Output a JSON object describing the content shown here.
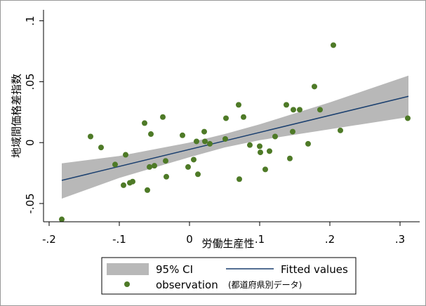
{
  "chart_data": {
    "type": "scatter",
    "xlabel": "労働生産性",
    "ylabel": "地域間価格差指数",
    "xlim": [
      -0.208,
      0.328
    ],
    "ylim": [
      -0.065,
      0.109
    ],
    "xticks": [
      {
        "value": -0.2,
        "label": "-.2"
      },
      {
        "value": -0.1,
        "label": "-.1"
      },
      0,
      {
        "value": 0.1,
        "label": ".1"
      },
      {
        "value": 0.2,
        "label": ".2"
      },
      {
        "value": 0.3,
        "label": ".3"
      }
    ],
    "yticks": [
      {
        "value": -0.05,
        "label": "-.05"
      },
      0,
      {
        "value": 0.05,
        "label": ".05"
      },
      {
        "value": 0.1,
        "label": ".1"
      }
    ],
    "legend_note": "(都道府県別データ)",
    "series": [
      {
        "name": "95% CI",
        "type": "band",
        "color": "#b8b8b8",
        "x": [
          -0.182,
          -0.1,
          0,
          0.05,
          0.1,
          0.2,
          0.312
        ],
        "lower": [
          -0.046,
          -0.029,
          -0.012,
          -0.004,
          0.002,
          0.011,
          0.021
        ],
        "upper": [
          -0.017,
          -0.011,
          0.0,
          0.007,
          0.015,
          0.033,
          0.055
        ]
      },
      {
        "name": "Fitted values",
        "type": "line",
        "color": "#1a3f6f",
        "x": [
          -0.182,
          0.312
        ],
        "values": [
          -0.031,
          0.038
        ]
      },
      {
        "name": "observation",
        "type": "scatter",
        "color": "#4e7a27",
        "x": [
          -0.182,
          -0.141,
          -0.126,
          -0.106,
          -0.094,
          -0.091,
          -0.085,
          -0.081,
          -0.064,
          -0.06,
          -0.057,
          -0.055,
          -0.05,
          -0.038,
          -0.034,
          -0.033,
          -0.01,
          -0.002,
          0.006,
          0.01,
          0.012,
          0.021,
          0.022,
          0.029,
          0.051,
          0.052,
          0.07,
          0.071,
          0.077,
          0.086,
          0.1,
          0.101,
          0.108,
          0.114,
          0.122,
          0.138,
          0.143,
          0.147,
          0.148,
          0.157,
          0.169,
          0.178,
          0.186,
          0.205,
          0.215,
          0.311
        ],
        "values": [
          -0.063,
          0.005,
          -0.004,
          -0.018,
          -0.035,
          -0.01,
          -0.033,
          -0.032,
          0.016,
          -0.039,
          -0.02,
          0.007,
          -0.019,
          0.021,
          -0.015,
          -0.028,
          0.006,
          -0.02,
          -0.014,
          0.001,
          -0.026,
          0.009,
          0.001,
          -0.001,
          0.003,
          0.02,
          0.031,
          -0.03,
          0.021,
          -0.002,
          -0.003,
          -0.008,
          -0.022,
          -0.007,
          0.005,
          0.031,
          -0.013,
          0.009,
          0.027,
          0.027,
          -0.001,
          0.046,
          0.027,
          0.08,
          0.01,
          0.02
        ]
      }
    ]
  }
}
